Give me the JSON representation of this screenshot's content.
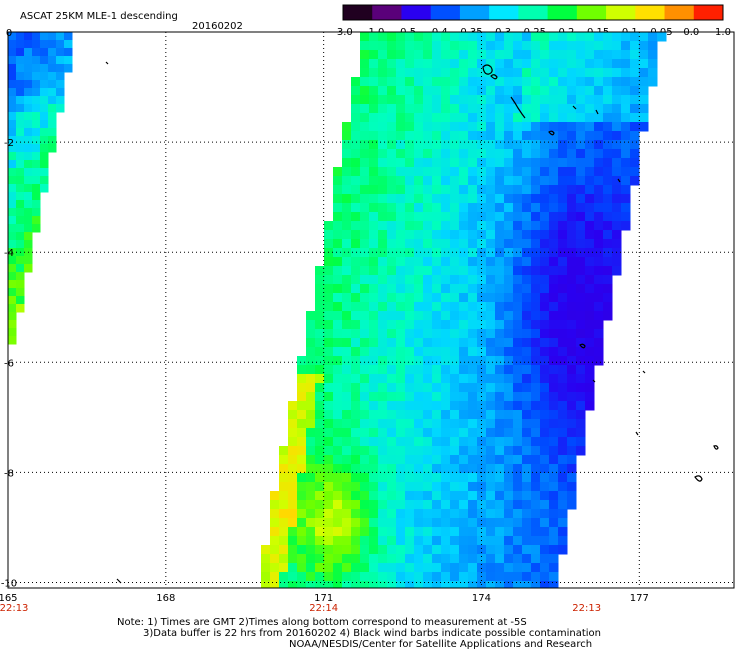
{
  "header": {
    "product": "ASCAT 25KM MLE-1 descending",
    "date": "20160202"
  },
  "colorbar": {
    "tick_labels": [
      "-3.0",
      "-1.0",
      "-0.5",
      "-0.4",
      "-0.35",
      "-0.3",
      "-0.25",
      "-0.2",
      "-0.15",
      "-0.1",
      "-0.05",
      "0.0",
      "1.0"
    ],
    "colors": [
      "#200020",
      "#5a007a",
      "#2a00f0",
      "#0050ff",
      "#00a0ff",
      "#00e8ff",
      "#00ffb0",
      "#00ff40",
      "#70ff00",
      "#d0ff00",
      "#ffe000",
      "#ff9000",
      "#ff2000"
    ]
  },
  "map": {
    "lon_ticks": [
      "165",
      "168",
      "171",
      "174",
      "177"
    ],
    "lat_ticks": [
      "0",
      "-2",
      "-4",
      "-6",
      "-8",
      "-10"
    ],
    "lon_range": [
      165,
      178.8
    ],
    "lat_range": [
      0,
      -10.1
    ],
    "pass_times": [
      "22:13",
      "22:14",
      "22:13"
    ]
  },
  "notes": {
    "line1": "Note: 1) Times are GMT 2)Times along bottom correspond to measurement at -5S",
    "line2": "3)Data buffer is 22 hrs from 20160202 4) Black wind barbs indicate possible contamination",
    "line3": "NOAA/NESDIS/Center for Satellite Applications and Research"
  }
}
